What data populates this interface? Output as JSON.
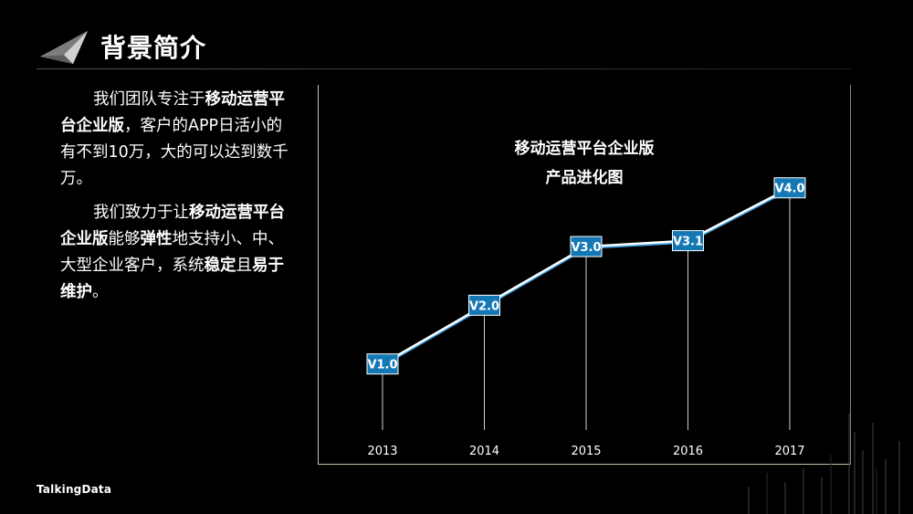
{
  "header": {
    "title": "背景简介"
  },
  "body": {
    "p1_a": "我们团队专注于",
    "p1_b": "移动运营平台企业版",
    "p1_c": "，客户的APP日活小的有不到10万，大的可以达到数千万。",
    "p2_a": "我们致力于让",
    "p2_b": "移动运营平台企业版",
    "p2_c": "能够",
    "p2_d": "弹性",
    "p2_e": "地支持小、中、大型企业客户，系统",
    "p2_f": "稳定",
    "p2_g": "且",
    "p2_h": "易于维护",
    "p2_i": "。"
  },
  "footer": {
    "brand": "TalkingData"
  },
  "chart_data": {
    "type": "line",
    "title_line1": "移动运营平台企业版",
    "title_line2": "产品进化图",
    "categories": [
      "2013",
      "2014",
      "2015",
      "2016",
      "2017"
    ],
    "labels": [
      "V1.0",
      "V2.0",
      "V3.0",
      "V3.1",
      "V4.0"
    ],
    "values": [
      1.0,
      2.0,
      3.0,
      3.1,
      4.0
    ],
    "ylim": [
      0.0,
      4.4
    ],
    "grid": false,
    "colors": {
      "line": "#ffffff",
      "line_shadow": "#3fa3e6",
      "label_bg": "#1478b4",
      "label_border": "#ffffff",
      "drop_line": "#cfcfcf",
      "frame": "#b9c9a8"
    }
  }
}
